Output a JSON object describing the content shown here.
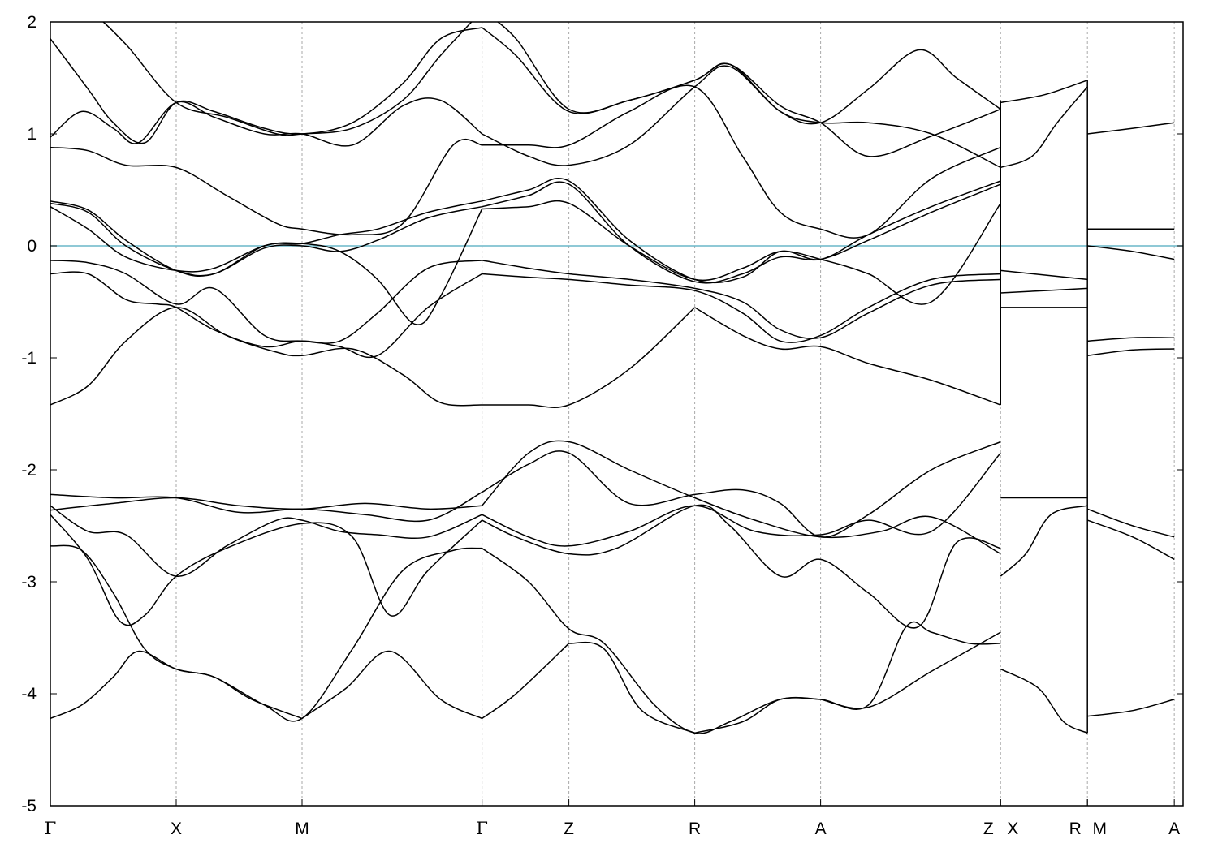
{
  "chart_data": {
    "type": "line",
    "title": "",
    "xlabel": "",
    "ylabel": "",
    "ylim": [
      -5,
      2
    ],
    "xlim": [
      0,
      9.0
    ],
    "yticks": [
      -5,
      -4,
      -3,
      -2,
      -1,
      0,
      1,
      2
    ],
    "ytick_labels": [
      "-5",
      "-4",
      "-3",
      "-2",
      "-1",
      "0",
      "1",
      "2"
    ],
    "kpoints": [
      {
        "label": "Γ",
        "x": 0
      },
      {
        "label": "X",
        "x": 1.0
      },
      {
        "label": "M",
        "x": 2.0
      },
      {
        "label": "Γ",
        "x": 3.43
      },
      {
        "label": "Z",
        "x": 4.12
      },
      {
        "label": "R",
        "x": 5.12
      },
      {
        "label": "A",
        "x": 6.12
      },
      {
        "label": "Z",
        "x": 7.55
      },
      {
        "label": "X",
        "x": 7.55
      },
      {
        "label": "R",
        "x": 8.24
      },
      {
        "label": "M",
        "x": 8.24
      },
      {
        "label": "A",
        "x": 8.93
      }
    ],
    "fermi_level": 0,
    "grid": "vertical dashed at k-points",
    "colors": {
      "bands": "#000000",
      "fermi": "#6ab7c8",
      "grid": "#aaaaaa"
    },
    "series": [
      {
        "x": [
          0,
          0.25,
          0.5,
          0.7,
          1.0,
          1.3,
          1.6,
          2.0
        ],
        "values": [
          -4.22,
          -4.1,
          -3.85,
          -3.62,
          -3.78,
          -3.85,
          -4.05,
          -4.22
        ]
      },
      {
        "x": [
          2.0,
          2.35,
          2.7,
          3.1,
          3.43
        ],
        "values": [
          -4.22,
          -3.95,
          -3.62,
          -4.05,
          -4.22
        ]
      },
      {
        "x": [
          3.43,
          3.7,
          4.12
        ],
        "values": [
          -4.22,
          -4.0,
          -3.55
        ]
      },
      {
        "x": [
          4.12,
          4.4,
          4.7,
          5.12
        ],
        "values": [
          -3.55,
          -3.6,
          -4.15,
          -4.35
        ]
      },
      {
        "x": [
          5.12,
          5.5,
          5.8,
          6.12
        ],
        "values": [
          -4.35,
          -4.25,
          -4.05,
          -4.05
        ]
      },
      {
        "x": [
          6.12,
          6.5,
          7.0,
          7.55
        ],
        "values": [
          -4.05,
          -4.12,
          -3.8,
          -3.45
        ]
      },
      {
        "x": [
          0,
          0.25,
          0.5,
          0.75,
          1.0,
          1.3,
          1.7,
          2.0,
          2.4,
          2.8,
          3.2,
          3.43
        ],
        "values": [
          -2.68,
          -2.72,
          -3.1,
          -3.6,
          -3.78,
          -3.85,
          -4.1,
          -4.22,
          -3.6,
          -2.9,
          -2.72,
          -2.7
        ]
      },
      {
        "x": [
          3.43,
          3.8,
          4.12,
          4.4,
          4.8,
          5.12,
          5.4,
          5.8,
          6.12,
          6.5,
          6.8,
          7.0,
          7.3,
          7.55
        ],
        "values": [
          -2.7,
          -3.0,
          -3.42,
          -3.55,
          -4.1,
          -4.35,
          -4.25,
          -4.05,
          -4.05,
          -4.1,
          -3.4,
          -3.45,
          -3.55,
          -3.55
        ]
      },
      {
        "x": [
          0,
          0.3,
          0.55,
          0.75,
          1.0,
          1.4,
          2.0,
          2.4,
          2.7,
          3.0,
          3.43
        ],
        "values": [
          -2.4,
          -2.8,
          -3.35,
          -3.3,
          -2.95,
          -2.7,
          -2.48,
          -2.6,
          -3.3,
          -2.9,
          -2.45
        ]
      },
      {
        "x": [
          3.43,
          3.7,
          4.12,
          4.5,
          5.12,
          5.4,
          5.8,
          6.12,
          6.5,
          6.9,
          7.2,
          7.55
        ],
        "values": [
          -2.45,
          -2.6,
          -2.75,
          -2.7,
          -2.32,
          -2.5,
          -2.95,
          -2.8,
          -3.1,
          -3.4,
          -2.65,
          -2.7
        ]
      },
      {
        "x": [
          0,
          0.3,
          0.6,
          1.0,
          1.4,
          1.8,
          2.0,
          2.3,
          2.6,
          3.0,
          3.43
        ],
        "values": [
          -2.32,
          -2.55,
          -2.58,
          -2.95,
          -2.68,
          -2.45,
          -2.45,
          -2.55,
          -2.58,
          -2.6,
          -2.4
        ]
      },
      {
        "x": [
          3.43,
          3.8,
          4.12,
          4.6,
          5.12,
          5.6,
          6.12,
          6.5,
          7.0,
          7.55
        ],
        "values": [
          -2.4,
          -2.6,
          -2.68,
          -2.55,
          -2.32,
          -2.55,
          -2.58,
          -2.45,
          -2.55,
          -1.85
        ]
      },
      {
        "x": [
          0,
          0.5,
          1.0,
          1.5,
          2.0,
          2.5,
          3.0,
          3.43
        ],
        "values": [
          -2.22,
          -2.25,
          -2.25,
          -2.38,
          -2.35,
          -2.4,
          -2.45,
          -2.2
        ]
      },
      {
        "x": [
          3.43,
          3.8,
          4.12,
          4.6,
          5.12,
          5.5,
          5.8,
          6.12,
          6.5,
          7.0,
          7.55
        ],
        "values": [
          -2.2,
          -1.95,
          -1.85,
          -2.3,
          -2.22,
          -2.18,
          -2.3,
          -2.6,
          -2.4,
          -2.0,
          -1.75
        ]
      },
      {
        "x": [
          0,
          0.5,
          1.0,
          1.5,
          2.0,
          2.5,
          3.0,
          3.43
        ],
        "values": [
          -2.36,
          -2.3,
          -2.25,
          -2.32,
          -2.35,
          -2.3,
          -2.35,
          -2.32
        ]
      },
      {
        "x": [
          3.43,
          3.8,
          4.12,
          4.6,
          5.12,
          5.6,
          6.12,
          6.6,
          7.0,
          7.55
        ],
        "values": [
          -2.32,
          -1.85,
          -1.75,
          -2.0,
          -2.25,
          -2.45,
          -2.6,
          -2.55,
          -2.42,
          -2.75
        ]
      },
      {
        "x": [
          7.55,
          7.75,
          7.95,
          8.24
        ],
        "values": [
          -2.95,
          -2.75,
          -2.4,
          -2.32
        ]
      },
      {
        "x": [
          7.55,
          8.24
        ],
        "values": [
          -2.25,
          -2.25
        ]
      },
      {
        "x": [
          8.24,
          8.6,
          8.93
        ],
        "values": [
          -2.45,
          -2.6,
          -2.8
        ]
      },
      {
        "x": [
          8.24,
          8.6,
          8.93
        ],
        "values": [
          -2.35,
          -2.5,
          -2.6
        ]
      },
      {
        "x": [
          7.55,
          7.85,
          8.05,
          8.24
        ],
        "values": [
          -3.78,
          -3.95,
          -4.25,
          -4.35
        ]
      },
      {
        "x": [
          8.24,
          8.6,
          8.93
        ],
        "values": [
          -4.2,
          -4.15,
          -4.05
        ]
      },
      {
        "x": [
          0,
          0.3,
          0.6,
          1.0,
          1.4,
          1.8,
          2.0,
          2.4,
          2.8,
          3.1,
          3.43
        ],
        "values": [
          -1.42,
          -1.25,
          -0.85,
          -0.55,
          -0.8,
          -0.95,
          -0.98,
          -0.92,
          -1.15,
          -1.4,
          -1.42
        ]
      },
      {
        "x": [
          3.43,
          3.8,
          4.12,
          4.6,
          5.12
        ],
        "values": [
          -1.42,
          -1.42,
          -1.42,
          -1.1,
          -0.55
        ]
      },
      {
        "x": [
          5.12,
          5.5,
          5.8,
          6.12,
          6.5,
          7.0,
          7.55
        ],
        "values": [
          -0.55,
          -0.8,
          -0.92,
          -0.9,
          -1.05,
          -1.2,
          -1.42
        ]
      },
      {
        "x": [
          0,
          0.3,
          0.6,
          0.85,
          1.0,
          1.3,
          1.7,
          2.0,
          2.3,
          2.6,
          3.0,
          3.43
        ],
        "values": [
          -0.25,
          -0.25,
          -0.48,
          -0.52,
          -0.55,
          -0.75,
          -0.9,
          -0.85,
          -0.9,
          -0.98,
          -0.55,
          -0.25
        ]
      },
      {
        "x": [
          3.43,
          3.8,
          4.12,
          4.6,
          5.12,
          5.5,
          5.8,
          6.12,
          6.5,
          7.0,
          7.55
        ],
        "values": [
          -0.25,
          -0.28,
          -0.3,
          -0.35,
          -0.4,
          -0.6,
          -0.85,
          -0.8,
          -0.55,
          -0.3,
          -0.25
        ]
      },
      {
        "x": [
          0,
          0.3,
          0.6,
          1.0,
          1.3,
          1.7,
          2.0,
          2.3,
          2.6,
          3.0,
          3.43
        ],
        "values": [
          -0.13,
          -0.15,
          -0.25,
          -0.52,
          -0.38,
          -0.8,
          -0.85,
          -0.85,
          -0.6,
          -0.2,
          -0.13
        ]
      },
      {
        "x": [
          3.43,
          3.8,
          4.12,
          4.6,
          5.12,
          5.5,
          5.8,
          6.12,
          6.5,
          7.0,
          7.55
        ],
        "values": [
          -0.13,
          -0.2,
          -0.25,
          -0.3,
          -0.38,
          -0.5,
          -0.75,
          -0.82,
          -0.6,
          -0.35,
          -0.3
        ]
      },
      {
        "x": [
          0,
          0.3,
          0.6,
          1.0,
          1.3,
          1.7,
          2.0,
          2.3,
          2.6,
          2.9,
          3.1,
          3.43
        ],
        "values": [
          0.35,
          0.15,
          -0.1,
          -0.22,
          -0.2,
          0.0,
          0.02,
          -0.05,
          -0.3,
          -0.7,
          -0.45,
          0.33
        ]
      },
      {
        "x": [
          3.43,
          3.8,
          4.12,
          4.6,
          5.12,
          5.5,
          5.8,
          6.12,
          6.5,
          7.0,
          7.55
        ],
        "values": [
          0.33,
          0.35,
          0.38,
          0.0,
          -0.3,
          -0.2,
          -0.05,
          -0.12,
          -0.25,
          -0.5,
          0.38
        ]
      },
      {
        "x": [
          0,
          0.3,
          0.6,
          1.0,
          1.3,
          1.7,
          2.0,
          2.3,
          2.6,
          3.0,
          3.43
        ],
        "values": [
          0.38,
          0.3,
          0.0,
          -0.22,
          -0.25,
          -0.02,
          0.0,
          -0.05,
          0.05,
          0.25,
          0.35
        ]
      },
      {
        "x": [
          3.43,
          3.8,
          4.12,
          4.6,
          5.12,
          5.5,
          5.8,
          6.12,
          6.5,
          7.0,
          7.55
        ],
        "values": [
          0.35,
          0.45,
          0.55,
          0.0,
          -0.32,
          -0.25,
          -0.1,
          -0.12,
          0.05,
          0.3,
          0.55
        ]
      },
      {
        "x": [
          0,
          0.3,
          0.6,
          1.0,
          1.3,
          1.7,
          2.0,
          2.3,
          2.6,
          3.0,
          3.43
        ],
        "values": [
          0.4,
          0.32,
          0.05,
          -0.22,
          -0.25,
          0.0,
          0.02,
          0.1,
          0.15,
          0.3,
          0.4
        ]
      },
      {
        "x": [
          3.43,
          3.8,
          4.12,
          4.6,
          5.12,
          5.5,
          5.8,
          6.12,
          6.5,
          7.0,
          7.55
        ],
        "values": [
          0.4,
          0.5,
          0.58,
          0.05,
          -0.3,
          -0.28,
          -0.05,
          -0.12,
          0.1,
          0.35,
          0.58
        ]
      },
      {
        "x": [
          0,
          0.3,
          0.6,
          1.0,
          1.4,
          1.8,
          2.0,
          2.4,
          2.8,
          3.2,
          3.43
        ],
        "values": [
          0.88,
          0.85,
          0.72,
          0.7,
          0.45,
          0.2,
          0.15,
          0.1,
          0.2,
          0.9,
          0.9
        ]
      },
      {
        "x": [
          3.43,
          3.8,
          4.12,
          4.6,
          5.12,
          5.5,
          5.8,
          6.12,
          6.5,
          7.0,
          7.55
        ],
        "values": [
          0.9,
          0.9,
          0.9,
          1.2,
          1.42,
          0.8,
          0.3,
          0.15,
          0.1,
          0.6,
          0.88
        ]
      },
      {
        "x": [
          0,
          0.25,
          0.5,
          0.7,
          1.0,
          1.3,
          1.7,
          2.0,
          2.4,
          2.8,
          3.1,
          3.43
        ],
        "values": [
          0.97,
          1.2,
          1.05,
          0.92,
          1.28,
          1.15,
          1.0,
          1.0,
          0.9,
          1.25,
          1.3,
          1.0
        ]
      },
      {
        "x": [
          3.43,
          3.8,
          4.12,
          4.6,
          5.12,
          5.4,
          5.8,
          6.12,
          6.5,
          7.0,
          7.55
        ],
        "values": [
          1.0,
          0.8,
          0.72,
          0.9,
          1.42,
          1.6,
          1.2,
          1.1,
          1.1,
          1.0,
          0.7
        ]
      },
      {
        "x": [
          0,
          0.3,
          0.5,
          0.75,
          1.0,
          1.3,
          1.7,
          2.0,
          2.4,
          2.8,
          3.1,
          3.43
        ],
        "values": [
          1.85,
          1.4,
          1.1,
          0.92,
          1.28,
          1.2,
          1.05,
          1.0,
          1.1,
          1.45,
          1.85,
          1.95
        ]
      },
      {
        "x": [
          3.43,
          3.7,
          4.12,
          4.6,
          5.12,
          5.4,
          5.8,
          6.12,
          6.5,
          6.9,
          7.2,
          7.55
        ],
        "values": [
          1.95,
          1.7,
          1.2,
          1.3,
          1.48,
          1.62,
          1.2,
          1.1,
          1.4,
          1.75,
          1.5,
          1.22
        ]
      },
      {
        "x": [
          0,
          0.3,
          0.6,
          1.0,
          1.4,
          1.8,
          2.0,
          2.4,
          2.8,
          3.1,
          3.43
        ],
        "values": [
          2.2,
          2.1,
          1.8,
          1.28,
          1.15,
          1.0,
          1.0,
          1.05,
          1.3,
          1.7,
          2.1
        ]
      },
      {
        "x": [
          3.43,
          3.7,
          4.12,
          4.6,
          5.12,
          5.4,
          5.8,
          6.12,
          6.5,
          7.0,
          7.55
        ],
        "values": [
          2.1,
          1.85,
          1.22,
          1.3,
          1.48,
          1.62,
          1.25,
          1.1,
          0.8,
          0.98,
          1.22
        ]
      },
      {
        "x": [
          7.55,
          7.8,
          8.0,
          8.24
        ],
        "values": [
          0.7,
          0.8,
          1.1,
          1.42
        ]
      },
      {
        "x": [
          7.55,
          7.9,
          8.24
        ],
        "values": [
          1.28,
          1.35,
          1.48
        ]
      },
      {
        "x": [
          8.24,
          8.6,
          8.93
        ],
        "values": [
          1.0,
          1.05,
          1.1
        ]
      },
      {
        "x": [
          7.55,
          8.24
        ],
        "values": [
          -0.22,
          -0.3
        ]
      },
      {
        "x": [
          7.55,
          8.24
        ],
        "values": [
          -0.42,
          -0.38
        ]
      },
      {
        "x": [
          7.55,
          8.24
        ],
        "values": [
          -0.55,
          -0.55
        ]
      },
      {
        "x": [
          8.24,
          8.93
        ],
        "values": [
          0.15,
          0.15
        ]
      },
      {
        "x": [
          8.24,
          8.6,
          8.93
        ],
        "values": [
          0.0,
          -0.05,
          -0.12
        ]
      },
      {
        "x": [
          8.24,
          8.6,
          8.93
        ],
        "values": [
          -0.85,
          -0.82,
          -0.82
        ]
      },
      {
        "x": [
          8.24,
          8.6,
          8.93
        ],
        "values": [
          -0.98,
          -0.93,
          -0.92
        ]
      }
    ]
  }
}
